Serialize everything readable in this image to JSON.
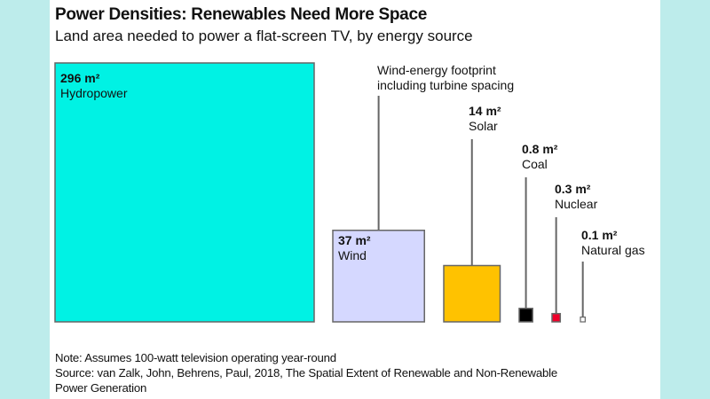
{
  "chart_data": {
    "type": "bar",
    "title": "Power Densities: Renewables Need More Space",
    "subtitle": "Land area needed to power a flat-screen TV, by energy source",
    "unit": "m²",
    "representation": "area-proportional squares",
    "categories": [
      "Hydropower",
      "Wind",
      "Solar",
      "Coal",
      "Nuclear",
      "Natural gas"
    ],
    "values": [
      296,
      37,
      14,
      0.8,
      0.3,
      0.1
    ],
    "value_labels": [
      "296 m²",
      "37 m²",
      "14 m²",
      "0.8 m²",
      "0.3 m²",
      "0.1 m²"
    ],
    "colors": [
      "#00f2e4",
      "#d5d8ff",
      "#ffc200",
      "#000000",
      "#f0002a",
      "#ffffff"
    ],
    "annotations": [
      "Wind-energy footprint including turbine spacing"
    ],
    "xlabel": "",
    "ylabel": "",
    "grid": false,
    "legend": "none"
  },
  "annotation": {
    "line1": "Wind-energy footprint",
    "line2": "including turbine spacing"
  },
  "footer": {
    "note": "Note: Assumes 100-watt television operating year-round",
    "source_line1": "Source: van Zalk, John, Behrens, Paul, 2018, The Spatial Extent of Renewable and Non-Renewable",
    "source_line2": "Power Generation"
  },
  "colors": {
    "background": "#bdeceb",
    "panel": "#ffffff"
  }
}
